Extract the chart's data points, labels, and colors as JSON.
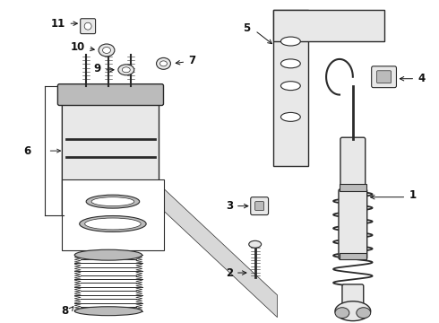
{
  "bg_color": "#ffffff",
  "line_color": "#2a2a2a",
  "label_color": "#111111",
  "band_color": "#d8d8d8",
  "part_fill": "#e8e8e8",
  "part_dark": "#bbbbbb"
}
